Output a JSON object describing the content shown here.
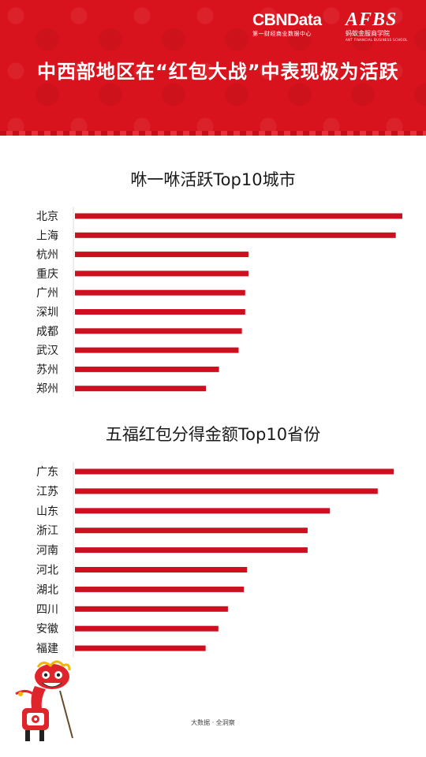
{
  "header": {
    "brand_cbn": "CBNData",
    "brand_cbn_sub": "第一财经商业数据中心",
    "brand_afbs": "AFBS",
    "brand_afbs_sub": "蚂蚁金服商学院",
    "brand_afbs_en": "ANT FINANCIAL BUSINESS SCHOOL",
    "headline": "中西部地区在“红包大战”中表现极为活跃",
    "background_color": "#d9131d"
  },
  "chart_data": [
    {
      "type": "bar",
      "orientation": "horizontal",
      "title": "咻一咻活跃Top10城市",
      "categories": [
        "北京",
        "上海",
        "杭州",
        "重庆",
        "广州",
        "深圳",
        "成都",
        "武汉",
        "苏州",
        "郑州"
      ],
      "values": [
        100,
        98,
        53,
        53,
        52,
        52,
        51,
        50,
        44,
        40
      ],
      "bar_color": "#cc1020",
      "xlim": [
        0,
        100
      ],
      "grid": false
    },
    {
      "type": "bar",
      "orientation": "horizontal",
      "title": "五福红包分得金额Top10省份",
      "categories": [
        "广东",
        "江苏",
        "山东",
        "浙江",
        "河南",
        "河北",
        "湖北",
        "四川",
        "安徽",
        "福建"
      ],
      "values": [
        100,
        95,
        80,
        73,
        73,
        54,
        53,
        48,
        45,
        41
      ],
      "bar_color": "#cc1020",
      "xlim": [
        0,
        100
      ],
      "grid": false
    }
  ],
  "footer": {
    "source_note": "大数据 · 全洞察"
  }
}
